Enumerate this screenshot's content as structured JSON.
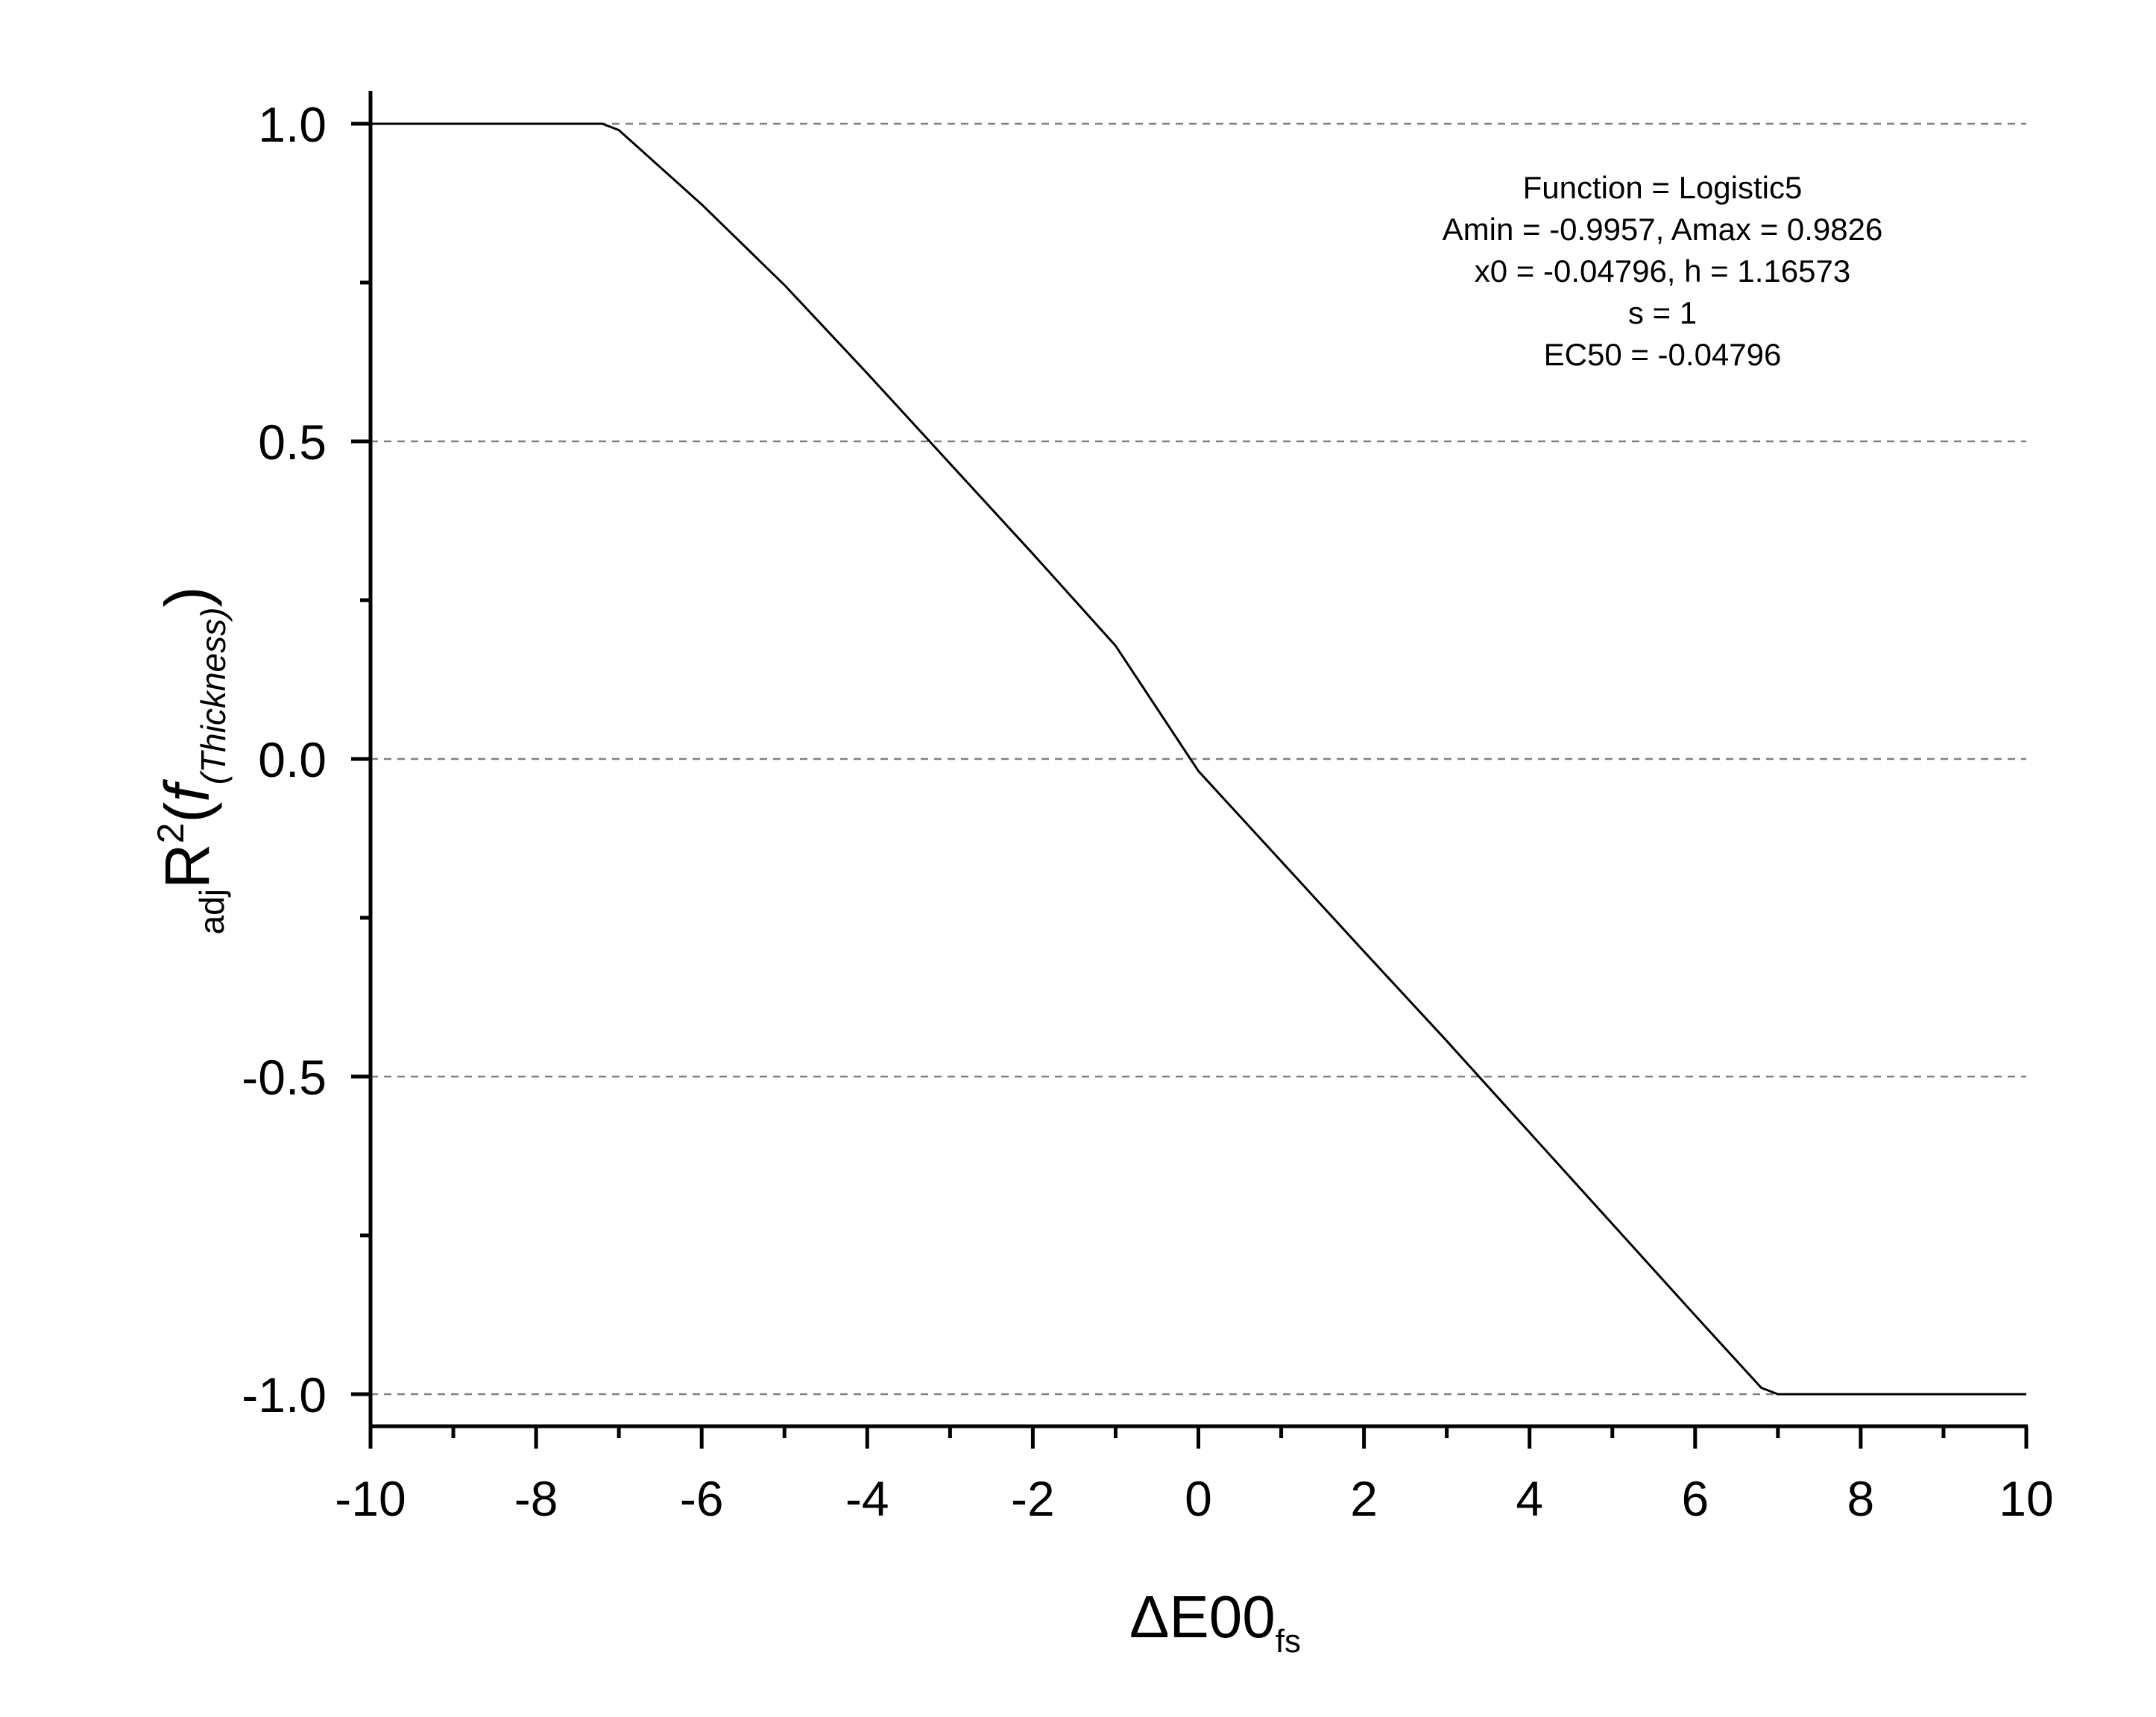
{
  "chart_data": {
    "type": "line",
    "title": "",
    "xlabel": {
      "symbol": "ΔE00",
      "subscript": "fs"
    },
    "ylabel": {
      "presub": "adj",
      "main": "R",
      "sup": "2",
      "open": "(",
      "func": "f",
      "funcsub": "(Thickness)",
      "close": ")"
    },
    "xlim": [
      -10,
      10
    ],
    "ylim": [
      -1.0,
      1.0
    ],
    "xticks": [
      -10,
      -8,
      -6,
      -4,
      -2,
      0,
      2,
      4,
      6,
      8,
      10
    ],
    "xtick_labels": [
      "-10",
      "-8",
      "-6",
      "-4",
      "-2",
      "0",
      "2",
      "4",
      "6",
      "8",
      "10"
    ],
    "yticks": [
      -1.0,
      -0.5,
      0.0,
      0.5,
      1.0
    ],
    "ytick_labels": [
      "-1.0",
      "-0.5",
      "0.0",
      "0.5",
      "1.0"
    ],
    "grid": {
      "y": true,
      "x": false,
      "style": "dashed"
    },
    "series": [
      {
        "points": [
          [
            -10,
            1.0
          ],
          [
            -7.2,
            1.0
          ],
          [
            -7.0,
            0.99
          ],
          [
            -6.0,
            0.873
          ],
          [
            -5.0,
            0.746
          ],
          [
            -4.0,
            0.607
          ],
          [
            -3.0,
            0.465
          ],
          [
            -2.0,
            0.323
          ],
          [
            -1.0,
            0.178
          ],
          [
            0.0,
            -0.019
          ],
          [
            1.0,
            -0.161
          ],
          [
            2.0,
            -0.303
          ],
          [
            3.0,
            -0.444
          ],
          [
            4.0,
            -0.588
          ],
          [
            5.0,
            -0.732
          ],
          [
            6.0,
            -0.876
          ],
          [
            6.8,
            -0.99
          ],
          [
            7.0,
            -1.0
          ],
          [
            10,
            -1.0
          ]
        ],
        "color": "#000000"
      }
    ],
    "annotation": [
      "Function = Logistic5",
      "Amin = -0.9957, Amax = 0.9826",
      "x0 = -0.04796, h = 1.16573",
      "s = 1",
      "EC50 = -0.04796"
    ]
  }
}
